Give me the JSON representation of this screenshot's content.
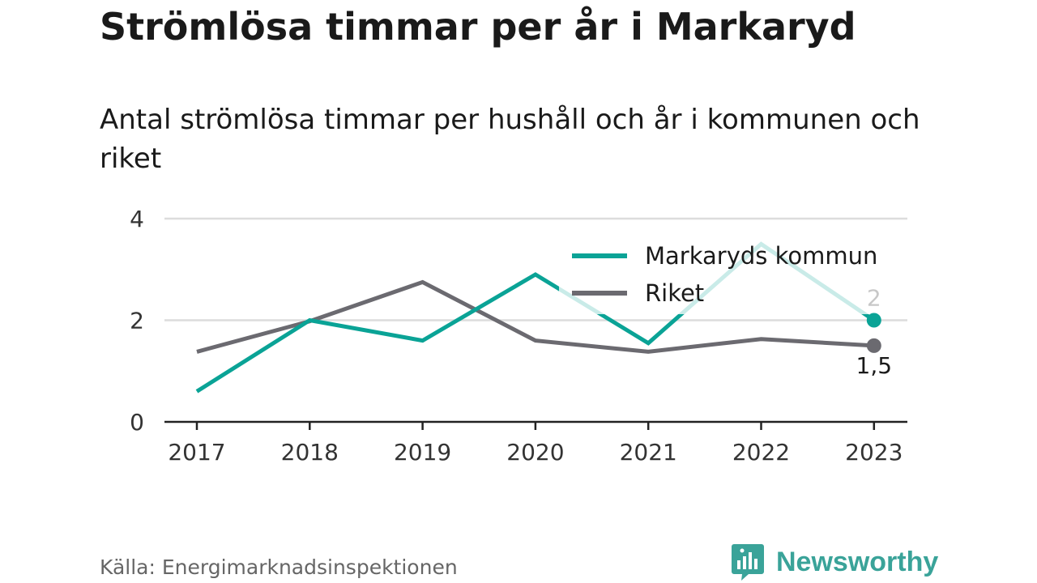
{
  "title": "Strömlösa timmar per år i Markaryd",
  "subtitle": "Antal strömlösa timmar per hushåll och år i kommunen och riket",
  "source": "Källa: Energimarknadsinspektionen",
  "logo": {
    "name": "Newsworthy",
    "icon": "newsworthy-logo-icon",
    "color": "#3aa399"
  },
  "chart_data": {
    "type": "line",
    "x": [
      "2017",
      "2018",
      "2019",
      "2020",
      "2021",
      "2022",
      "2023"
    ],
    "ylim": [
      0,
      4
    ],
    "yticks": [
      0,
      2,
      4
    ],
    "grid": true,
    "legend_position": "top-right",
    "series": [
      {
        "name": "Markaryds kommun",
        "color": "#0aa396",
        "values": [
          0.6,
          2.0,
          1.6,
          2.9,
          1.55,
          3.5,
          2.0
        ],
        "end_label": "2"
      },
      {
        "name": "Riket",
        "color": "#6b6a70",
        "values": [
          1.38,
          1.98,
          2.75,
          1.6,
          1.38,
          1.63,
          1.5
        ],
        "end_label": "1,5"
      }
    ]
  }
}
